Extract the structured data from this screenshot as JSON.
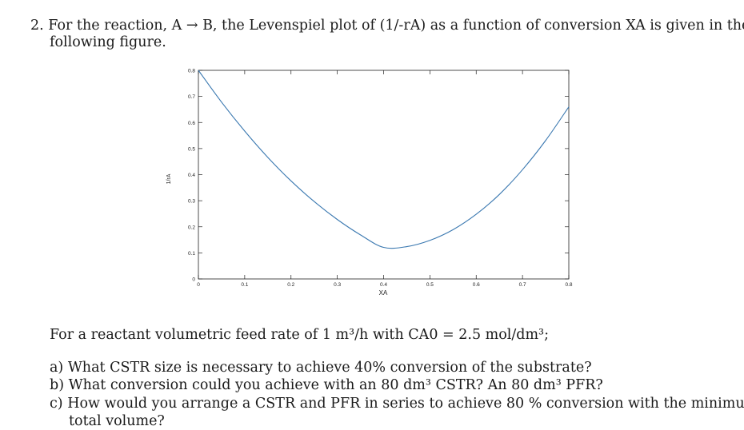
{
  "question": {
    "line1": "2. For the reaction, A → B, the Levenspiel plot of (1/-rA) as a function of conversion XA is given in the",
    "line2": "following figure."
  },
  "chart_data": {
    "type": "line",
    "xlabel": "XA",
    "ylabel": "1/rA",
    "xlim": [
      0,
      0.8
    ],
    "ylim": [
      0,
      0.8
    ],
    "x_ticks": [
      "0",
      "0.1",
      "0.2",
      "0.3",
      "0.4",
      "0.5",
      "0.6",
      "0.7",
      "0.8"
    ],
    "y_ticks": [
      "0",
      "0.1",
      "0.2",
      "0.3",
      "0.4",
      "0.5",
      "0.6",
      "0.7",
      "0.8"
    ],
    "grid": false,
    "series": [
      {
        "color": "#3a78b0",
        "x": [
          0.0,
          0.05,
          0.1,
          0.15,
          0.2,
          0.25,
          0.3,
          0.35,
          0.4,
          0.45,
          0.5,
          0.55,
          0.6,
          0.65,
          0.7,
          0.75,
          0.8
        ],
        "y": [
          0.8,
          0.678,
          0.567,
          0.466,
          0.376,
          0.297,
          0.228,
          0.169,
          0.121,
          0.124,
          0.148,
          0.189,
          0.248,
          0.324,
          0.419,
          0.531,
          0.66
        ]
      }
    ]
  },
  "body": {
    "feed": "For a reactant volumetric feed rate of 1 m³/h with CA0 = 2.5 mol/dm³;",
    "qa": "a) What CSTR size is necessary to achieve 40% conversion of the substrate?",
    "qb": "b) What conversion could you achieve with an 80 dm³ CSTR? An 80 dm³ PFR?",
    "qc1": "c) How would you arrange a CSTR and PFR in series to achieve 80 % conversion with the minimum",
    "qc2": "total volume?"
  }
}
